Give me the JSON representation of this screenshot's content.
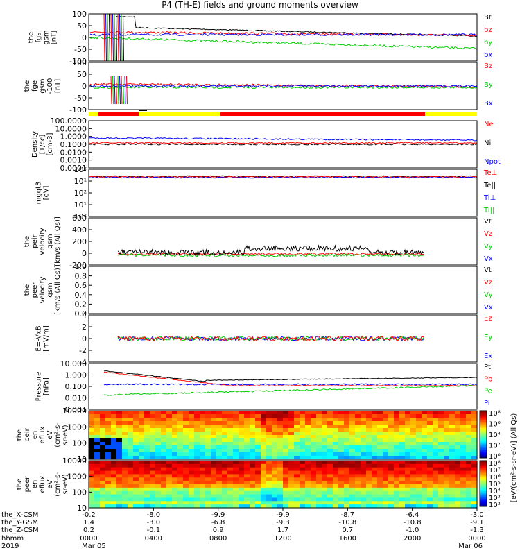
{
  "title": "P4 (TH-E) fields and ground moments overview",
  "colors": {
    "black": "#000000",
    "red": "#ff0000",
    "green": "#00cc00",
    "blue": "#0000ff",
    "yellow": "#ffff00"
  },
  "chart_data": [
    {
      "id": "fgs",
      "type": "line",
      "ylabel": [
        "the",
        "fgs",
        "gsm",
        "[nT]"
      ],
      "yticks": [
        "100",
        "50",
        "0",
        "-50",
        "-100"
      ],
      "ylim": [
        -100,
        100
      ],
      "legend": [
        {
          "label": "Bt",
          "color": "black"
        },
        {
          "label": "bz",
          "color": "red"
        },
        {
          "label": "by",
          "color": "green"
        },
        {
          "label": "bx",
          "color": "blue"
        }
      ]
    },
    {
      "id": "fge",
      "type": "line",
      "ylabel": [
        "the",
        "fge",
        "gsm",
        "-100",
        "[nT]"
      ],
      "yticks": [
        "100",
        "50",
        "0",
        "-50",
        "-100"
      ],
      "ylim": [
        -100,
        100
      ],
      "legend": [
        {
          "label": "Bz",
          "color": "red"
        },
        {
          "label": "By",
          "color": "green"
        },
        {
          "label": "Bx",
          "color": "blue"
        }
      ]
    },
    {
      "id": "density",
      "type": "line",
      "ylabel": [
        "Density",
        "[1/cc]",
        "[cm-3]"
      ],
      "yticks": [
        "100.0000",
        "10.0000",
        "1.0000",
        "0.1000",
        "0.0100",
        "0.0010",
        "0.0001"
      ],
      "ylim": [
        0.0001,
        100
      ],
      "log": true,
      "legend": [
        {
          "label": "Ne",
          "color": "red"
        },
        {
          "label": "Ni",
          "color": "black"
        },
        {
          "label": "Npot",
          "color": "blue"
        }
      ]
    },
    {
      "id": "temp",
      "type": "line",
      "ylabel": [
        "mgqt3",
        "[eV]"
      ],
      "yticks": [
        "10²",
        "10¹",
        "10²",
        "10¹",
        "10²"
      ],
      "log": true,
      "legend": [
        {
          "label": "Te⊥",
          "color": "red"
        },
        {
          "label": "Te||",
          "color": "black"
        },
        {
          "label": "Ti⊥",
          "color": "blue"
        },
        {
          "label": "Ti||",
          "color": "green"
        }
      ]
    },
    {
      "id": "peir_v",
      "type": "line",
      "ylabel": [
        "the",
        "peir",
        "velocity",
        "gsm",
        "[km/s (All Qs)]"
      ],
      "yticks": [
        "600",
        "400",
        "200",
        "0",
        "-200"
      ],
      "ylim": [
        -200,
        600
      ],
      "legend": [
        {
          "label": "Vt",
          "color": "black"
        },
        {
          "label": "Vz",
          "color": "red"
        },
        {
          "label": "Vy",
          "color": "green"
        },
        {
          "label": "Vx",
          "color": "blue"
        }
      ]
    },
    {
      "id": "peer_v",
      "type": "line",
      "ylabel": [
        "the",
        "peer",
        "velocity",
        "gsm",
        "[km/s (All Qs)]"
      ],
      "yticks": [
        "1.0",
        "0.8",
        "0.6",
        "0.4",
        "0.2",
        "0.0"
      ],
      "ylim": [
        0,
        1
      ],
      "legend": [
        {
          "label": "Vt",
          "color": "black"
        },
        {
          "label": "Vz",
          "color": "red"
        },
        {
          "label": "Vy",
          "color": "green"
        },
        {
          "label": "Vx",
          "color": "blue"
        }
      ]
    },
    {
      "id": "efield",
      "type": "line",
      "ylabel": [
        "E=-VxB",
        "[mV/m]"
      ],
      "yticks": [
        "4",
        "2",
        "0",
        "-2",
        "-4"
      ],
      "ylim": [
        -4,
        4
      ],
      "legend": [
        {
          "label": "Ez",
          "color": "red"
        },
        {
          "label": "Ey",
          "color": "green"
        },
        {
          "label": "Ex",
          "color": "blue"
        }
      ]
    },
    {
      "id": "pressure",
      "type": "line",
      "ylabel": [
        "Pressure",
        "[nPa]"
      ],
      "yticks": [
        "10.000",
        "1.000",
        "0.100",
        "0.010",
        "0.001"
      ],
      "ylim": [
        0.001,
        10
      ],
      "log": true,
      "legend": [
        {
          "label": "Pt",
          "color": "black"
        },
        {
          "label": "Pb",
          "color": "red"
        },
        {
          "label": "Pe",
          "color": "green"
        },
        {
          "label": "Pi",
          "color": "blue"
        }
      ]
    },
    {
      "id": "peir_en",
      "type": "heatmap",
      "ylabel": [
        "the",
        "peir",
        "en",
        "eflux",
        "eV",
        "(cm²-s-",
        "sr-eV)"
      ],
      "yticks": [
        "10000",
        "1000",
        "100",
        "10"
      ]
    },
    {
      "id": "peer_en",
      "type": "heatmap",
      "ylabel": [
        "the",
        "peer",
        "en",
        "eflux",
        "eV",
        "(cm²-s-",
        "sr-eV)"
      ],
      "yticks": [
        "10000",
        "1000",
        "100",
        "10"
      ]
    }
  ],
  "colorbar": {
    "label": "[eV/(cm²-s-sr-eV)] (All Qs)",
    "ticks1": [
      "10⁸",
      "10⁶",
      "10⁴",
      "10²",
      "10⁰"
    ],
    "ticks2": [
      "10⁸",
      "10⁷",
      "10⁶",
      "10⁵",
      "10⁴",
      "10³",
      "10²"
    ]
  },
  "xaxis": {
    "row_labels": [
      "the_X-CSM",
      "the_Y-GSM",
      "the_Z-CSM",
      "hhmm",
      "2019"
    ],
    "columns": [
      [
        "-0.2",
        "1.4",
        "0.2",
        "0000",
        "Mar 05"
      ],
      [
        "-8.0",
        "-3.0",
        "-0.1",
        "0400",
        ""
      ],
      [
        "-9.9",
        "-6.8",
        "0.9",
        "0800",
        ""
      ],
      [
        "-9.9",
        "-9.3",
        "1.7",
        "1200",
        ""
      ],
      [
        "-8.7",
        "-10.8",
        "0.7",
        "1600",
        ""
      ],
      [
        "-6.4",
        "-10.8",
        "-1.0",
        "2000",
        ""
      ],
      [
        "-3.0",
        "-9.1",
        "-1.3",
        "0000",
        "Mar 06"
      ]
    ]
  }
}
